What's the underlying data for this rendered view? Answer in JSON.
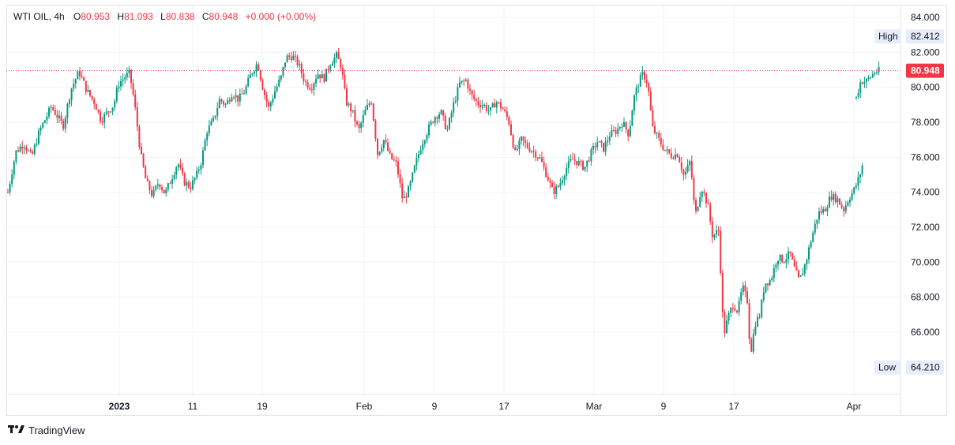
{
  "legend": {
    "symbol": "WTI OIL, 4h",
    "o_label": "O",
    "o_value": "80.953",
    "h_label": "H",
    "h_value": "81.093",
    "l_label": "L",
    "l_value": "80.838",
    "c_label": "C",
    "c_value": "80.948",
    "change": "+0.000 (+0.00%)"
  },
  "branding": {
    "text": "TradingView",
    "icon": "tradingview-logo-icon"
  },
  "colors": {
    "up": "#089981",
    "down": "#f23645",
    "grid": "#f0f3fa",
    "last_price": "#f23645"
  },
  "chart_data": {
    "type": "candlestick",
    "timeframe": "4h",
    "ylim": [
      63.5,
      84.8
    ],
    "y_ticks": [
      "84.000",
      "82.000",
      "80.000",
      "78.000",
      "76.000",
      "74.000",
      "72.000",
      "70.000",
      "68.000",
      "66.000"
    ],
    "x_ticks": [
      "2023",
      "11",
      "19",
      "Feb",
      "9",
      "17",
      "Mar",
      "9",
      "17",
      "Apr"
    ],
    "high_label": "High",
    "high_value": "82.412",
    "low_label": "Low",
    "low_value": "64.210",
    "last_price": "80.948",
    "path": [
      [
        0,
        74.0
      ],
      [
        10,
        76.3
      ],
      [
        20,
        76.8
      ],
      [
        30,
        76.0
      ],
      [
        40,
        77.5
      ],
      [
        55,
        78.9
      ],
      [
        70,
        77.8
      ],
      [
        80,
        79.9
      ],
      [
        90,
        80.9
      ],
      [
        100,
        79.8
      ],
      [
        110,
        79.1
      ],
      [
        118,
        78.1
      ],
      [
        126,
        78.6
      ],
      [
        134,
        79.0
      ],
      [
        140,
        80.2
      ],
      [
        148,
        80.6
      ],
      [
        154,
        80.8
      ],
      [
        160,
        79.2
      ],
      [
        168,
        76.2
      ],
      [
        175,
        74.6
      ],
      [
        183,
        73.8
      ],
      [
        191,
        74.6
      ],
      [
        199,
        73.9
      ],
      [
        207,
        74.8
      ],
      [
        215,
        75.7
      ],
      [
        223,
        74.6
      ],
      [
        231,
        74.3
      ],
      [
        239,
        75.0
      ],
      [
        245,
        75.8
      ],
      [
        252,
        77.5
      ],
      [
        260,
        78.1
      ],
      [
        268,
        79.3
      ],
      [
        276,
        79.0
      ],
      [
        284,
        79.7
      ],
      [
        292,
        79.3
      ],
      [
        300,
        79.8
      ],
      [
        308,
        80.8
      ],
      [
        316,
        81.4
      ],
      [
        322,
        80.1
      ],
      [
        330,
        78.8
      ],
      [
        338,
        79.8
      ],
      [
        346,
        80.6
      ],
      [
        352,
        81.7
      ],
      [
        360,
        81.8
      ],
      [
        368,
        81.3
      ],
      [
        376,
        80.3
      ],
      [
        384,
        80.0
      ],
      [
        392,
        80.8
      ],
      [
        400,
        80.5
      ],
      [
        408,
        81.4
      ],
      [
        416,
        81.8
      ],
      [
        422,
        81.2
      ],
      [
        428,
        79.2
      ],
      [
        436,
        78.6
      ],
      [
        444,
        77.5
      ],
      [
        452,
        78.6
      ],
      [
        460,
        79.3
      ],
      [
        468,
        76.2
      ],
      [
        476,
        77.0
      ],
      [
        484,
        76.0
      ],
      [
        492,
        75.6
      ],
      [
        500,
        73.5
      ],
      [
        508,
        74.2
      ],
      [
        516,
        75.6
      ],
      [
        524,
        76.8
      ],
      [
        532,
        77.6
      ],
      [
        540,
        78.3
      ],
      [
        548,
        78.6
      ],
      [
        556,
        77.5
      ],
      [
        564,
        79.0
      ],
      [
        572,
        80.2
      ],
      [
        580,
        80.4
      ],
      [
        586,
        79.6
      ],
      [
        594,
        79.1
      ],
      [
        602,
        79.0
      ],
      [
        610,
        78.6
      ],
      [
        618,
        79.2
      ],
      [
        626,
        78.8
      ],
      [
        634,
        78.1
      ],
      [
        642,
        76.2
      ],
      [
        650,
        77.0
      ],
      [
        658,
        76.6
      ],
      [
        666,
        76.3
      ],
      [
        674,
        75.9
      ],
      [
        682,
        75.0
      ],
      [
        690,
        74.0
      ],
      [
        698,
        74.4
      ],
      [
        706,
        75.3
      ],
      [
        714,
        75.9
      ],
      [
        722,
        75.7
      ],
      [
        730,
        75.4
      ],
      [
        738,
        76.2
      ],
      [
        746,
        76.9
      ],
      [
        754,
        76.5
      ],
      [
        762,
        77.3
      ],
      [
        770,
        77.5
      ],
      [
        778,
        78.0
      ],
      [
        786,
        77.3
      ],
      [
        792,
        79.3
      ],
      [
        798,
        80.2
      ],
      [
        804,
        80.8
      ],
      [
        810,
        80.2
      ],
      [
        816,
        77.7
      ],
      [
        824,
        77.0
      ],
      [
        832,
        76.4
      ],
      [
        840,
        76.1
      ],
      [
        848,
        76.2
      ],
      [
        856,
        74.9
      ],
      [
        864,
        75.8
      ],
      [
        870,
        72.6
      ],
      [
        878,
        74.3
      ],
      [
        886,
        73.3
      ],
      [
        892,
        71.5
      ],
      [
        900,
        71.8
      ],
      [
        906,
        65.8
      ],
      [
        912,
        66.9
      ],
      [
        918,
        67.6
      ],
      [
        924,
        67.2
      ],
      [
        930,
        68.6
      ],
      [
        936,
        67.8
      ],
      [
        940,
        64.7
      ],
      [
        946,
        66.5
      ],
      [
        952,
        67.0
      ],
      [
        958,
        68.8
      ],
      [
        966,
        69.0
      ],
      [
        974,
        70.3
      ],
      [
        982,
        70.1
      ],
      [
        990,
        70.5
      ],
      [
        996,
        69.6
      ],
      [
        1002,
        68.9
      ],
      [
        1010,
        70.0
      ],
      [
        1018,
        71.5
      ],
      [
        1026,
        72.8
      ],
      [
        1034,
        73.0
      ],
      [
        1042,
        73.8
      ],
      [
        1050,
        73.6
      ],
      [
        1058,
        73.0
      ],
      [
        1064,
        73.6
      ],
      [
        1072,
        74.2
      ],
      [
        1078,
        74.9
      ],
      [
        1082,
        75.6
      ]
    ],
    "gap_path": [
      [
        1084,
        79.4
      ],
      [
        1090,
        80.4
      ],
      [
        1096,
        80.3
      ],
      [
        1102,
        80.6
      ],
      [
        1108,
        80.9
      ],
      [
        1114,
        80.948
      ]
    ]
  }
}
